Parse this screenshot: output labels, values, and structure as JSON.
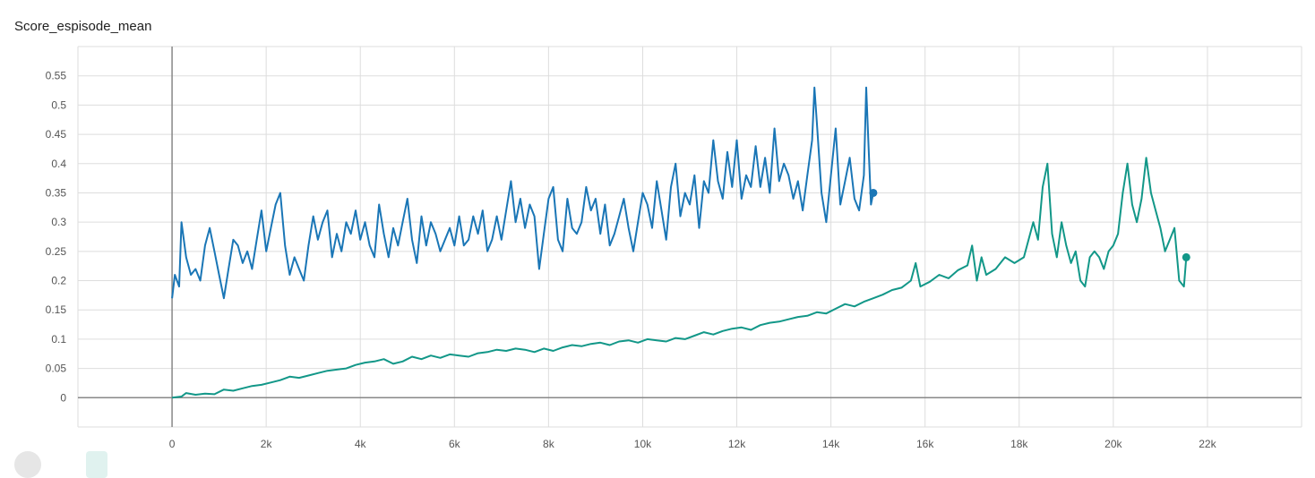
{
  "title": "Score_espisode_mean",
  "chart_data": {
    "type": "line",
    "title": "Score_espisode_mean",
    "xlabel": "",
    "ylabel": "",
    "xlim": [
      -2000,
      24000
    ],
    "ylim": [
      -0.05,
      0.6
    ],
    "grid": true,
    "x_ticks": [
      0,
      2000,
      4000,
      6000,
      8000,
      10000,
      12000,
      14000,
      16000,
      18000,
      20000,
      22000
    ],
    "x_tick_labels": [
      "0",
      "2k",
      "4k",
      "6k",
      "8k",
      "10k",
      "12k",
      "14k",
      "16k",
      "18k",
      "20k",
      "22k"
    ],
    "y_ticks": [
      0,
      0.05,
      0.1,
      0.15,
      0.2,
      0.25,
      0.3,
      0.35,
      0.4,
      0.45,
      0.5,
      0.55
    ],
    "y_tick_labels": [
      "0",
      "0.05",
      "0.1",
      "0.15",
      "0.2",
      "0.25",
      "0.3",
      "0.35",
      "0.4",
      "0.45",
      "0.5",
      "0.55"
    ],
    "series": [
      {
        "color": "#1a76b6",
        "end_marker": true,
        "points": [
          [
            0,
            0.17
          ],
          [
            60,
            0.21
          ],
          [
            150,
            0.19
          ],
          [
            200,
            0.3
          ],
          [
            300,
            0.24
          ],
          [
            400,
            0.21
          ],
          [
            500,
            0.22
          ],
          [
            600,
            0.2
          ],
          [
            700,
            0.26
          ],
          [
            800,
            0.29
          ],
          [
            900,
            0.25
          ],
          [
            1000,
            0.21
          ],
          [
            1100,
            0.17
          ],
          [
            1200,
            0.22
          ],
          [
            1300,
            0.27
          ],
          [
            1400,
            0.26
          ],
          [
            1500,
            0.23
          ],
          [
            1600,
            0.25
          ],
          [
            1700,
            0.22
          ],
          [
            1800,
            0.27
          ],
          [
            1900,
            0.32
          ],
          [
            2000,
            0.25
          ],
          [
            2100,
            0.29
          ],
          [
            2200,
            0.33
          ],
          [
            2300,
            0.35
          ],
          [
            2400,
            0.26
          ],
          [
            2500,
            0.21
          ],
          [
            2600,
            0.24
          ],
          [
            2700,
            0.22
          ],
          [
            2800,
            0.2
          ],
          [
            2900,
            0.26
          ],
          [
            3000,
            0.31
          ],
          [
            3100,
            0.27
          ],
          [
            3200,
            0.3
          ],
          [
            3300,
            0.32
          ],
          [
            3400,
            0.24
          ],
          [
            3500,
            0.28
          ],
          [
            3600,
            0.25
          ],
          [
            3700,
            0.3
          ],
          [
            3800,
            0.28
          ],
          [
            3900,
            0.32
          ],
          [
            4000,
            0.27
          ],
          [
            4100,
            0.3
          ],
          [
            4200,
            0.26
          ],
          [
            4300,
            0.24
          ],
          [
            4400,
            0.33
          ],
          [
            4500,
            0.28
          ],
          [
            4600,
            0.24
          ],
          [
            4700,
            0.29
          ],
          [
            4800,
            0.26
          ],
          [
            4900,
            0.3
          ],
          [
            5000,
            0.34
          ],
          [
            5100,
            0.27
          ],
          [
            5200,
            0.23
          ],
          [
            5300,
            0.31
          ],
          [
            5400,
            0.26
          ],
          [
            5500,
            0.3
          ],
          [
            5600,
            0.28
          ],
          [
            5700,
            0.25
          ],
          [
            5800,
            0.27
          ],
          [
            5900,
            0.29
          ],
          [
            6000,
            0.26
          ],
          [
            6100,
            0.31
          ],
          [
            6200,
            0.26
          ],
          [
            6300,
            0.27
          ],
          [
            6400,
            0.31
          ],
          [
            6500,
            0.28
          ],
          [
            6600,
            0.32
          ],
          [
            6700,
            0.25
          ],
          [
            6800,
            0.27
          ],
          [
            6900,
            0.31
          ],
          [
            7000,
            0.27
          ],
          [
            7100,
            0.32
          ],
          [
            7200,
            0.37
          ],
          [
            7300,
            0.3
          ],
          [
            7400,
            0.34
          ],
          [
            7500,
            0.29
          ],
          [
            7600,
            0.33
          ],
          [
            7700,
            0.31
          ],
          [
            7800,
            0.22
          ],
          [
            7900,
            0.28
          ],
          [
            8000,
            0.34
          ],
          [
            8100,
            0.36
          ],
          [
            8200,
            0.27
          ],
          [
            8300,
            0.25
          ],
          [
            8400,
            0.34
          ],
          [
            8500,
            0.29
          ],
          [
            8600,
            0.28
          ],
          [
            8700,
            0.3
          ],
          [
            8800,
            0.36
          ],
          [
            8900,
            0.32
          ],
          [
            9000,
            0.34
          ],
          [
            9100,
            0.28
          ],
          [
            9200,
            0.33
          ],
          [
            9300,
            0.26
          ],
          [
            9400,
            0.28
          ],
          [
            9500,
            0.31
          ],
          [
            9600,
            0.34
          ],
          [
            9700,
            0.29
          ],
          [
            9800,
            0.25
          ],
          [
            9900,
            0.3
          ],
          [
            10000,
            0.35
          ],
          [
            10100,
            0.33
          ],
          [
            10200,
            0.29
          ],
          [
            10300,
            0.37
          ],
          [
            10400,
            0.32
          ],
          [
            10500,
            0.27
          ],
          [
            10600,
            0.36
          ],
          [
            10700,
            0.4
          ],
          [
            10800,
            0.31
          ],
          [
            10900,
            0.35
          ],
          [
            11000,
            0.33
          ],
          [
            11100,
            0.38
          ],
          [
            11200,
            0.29
          ],
          [
            11300,
            0.37
          ],
          [
            11400,
            0.35
          ],
          [
            11500,
            0.44
          ],
          [
            11600,
            0.37
          ],
          [
            11700,
            0.34
          ],
          [
            11800,
            0.42
          ],
          [
            11900,
            0.36
          ],
          [
            12000,
            0.44
          ],
          [
            12100,
            0.34
          ],
          [
            12200,
            0.38
          ],
          [
            12300,
            0.36
          ],
          [
            12400,
            0.43
          ],
          [
            12500,
            0.36
          ],
          [
            12600,
            0.41
          ],
          [
            12700,
            0.35
          ],
          [
            12800,
            0.46
          ],
          [
            12900,
            0.37
          ],
          [
            13000,
            0.4
          ],
          [
            13100,
            0.38
          ],
          [
            13200,
            0.34
          ],
          [
            13300,
            0.37
          ],
          [
            13400,
            0.32
          ],
          [
            13500,
            0.38
          ],
          [
            13600,
            0.44
          ],
          [
            13650,
            0.53
          ],
          [
            13700,
            0.47
          ],
          [
            13800,
            0.35
          ],
          [
            13900,
            0.3
          ],
          [
            14000,
            0.38
          ],
          [
            14100,
            0.46
          ],
          [
            14200,
            0.33
          ],
          [
            14300,
            0.37
          ],
          [
            14400,
            0.41
          ],
          [
            14500,
            0.34
          ],
          [
            14600,
            0.32
          ],
          [
            14700,
            0.38
          ],
          [
            14750,
            0.53
          ],
          [
            14800,
            0.43
          ],
          [
            14850,
            0.33
          ],
          [
            14900,
            0.35
          ]
        ]
      },
      {
        "color": "#129788",
        "end_marker": true,
        "points": [
          [
            0,
            0.0
          ],
          [
            200,
            0.002
          ],
          [
            300,
            0.008
          ],
          [
            500,
            0.005
          ],
          [
            700,
            0.007
          ],
          [
            900,
            0.006
          ],
          [
            1100,
            0.014
          ],
          [
            1300,
            0.012
          ],
          [
            1500,
            0.016
          ],
          [
            1700,
            0.02
          ],
          [
            1900,
            0.022
          ],
          [
            2100,
            0.026
          ],
          [
            2300,
            0.03
          ],
          [
            2500,
            0.036
          ],
          [
            2700,
            0.034
          ],
          [
            2900,
            0.038
          ],
          [
            3100,
            0.042
          ],
          [
            3300,
            0.046
          ],
          [
            3500,
            0.048
          ],
          [
            3700,
            0.05
          ],
          [
            3900,
            0.056
          ],
          [
            4100,
            0.06
          ],
          [
            4300,
            0.062
          ],
          [
            4500,
            0.066
          ],
          [
            4700,
            0.058
          ],
          [
            4900,
            0.062
          ],
          [
            5100,
            0.07
          ],
          [
            5300,
            0.066
          ],
          [
            5500,
            0.072
          ],
          [
            5700,
            0.068
          ],
          [
            5900,
            0.074
          ],
          [
            6100,
            0.072
          ],
          [
            6300,
            0.07
          ],
          [
            6500,
            0.076
          ],
          [
            6700,
            0.078
          ],
          [
            6900,
            0.082
          ],
          [
            7100,
            0.08
          ],
          [
            7300,
            0.084
          ],
          [
            7500,
            0.082
          ],
          [
            7700,
            0.078
          ],
          [
            7900,
            0.084
          ],
          [
            8100,
            0.08
          ],
          [
            8300,
            0.086
          ],
          [
            8500,
            0.09
          ],
          [
            8700,
            0.088
          ],
          [
            8900,
            0.092
          ],
          [
            9100,
            0.094
          ],
          [
            9300,
            0.09
          ],
          [
            9500,
            0.096
          ],
          [
            9700,
            0.098
          ],
          [
            9900,
            0.094
          ],
          [
            10100,
            0.1
          ],
          [
            10300,
            0.098
          ],
          [
            10500,
            0.096
          ],
          [
            10700,
            0.102
          ],
          [
            10900,
            0.1
          ],
          [
            11100,
            0.106
          ],
          [
            11300,
            0.112
          ],
          [
            11500,
            0.108
          ],
          [
            11700,
            0.114
          ],
          [
            11900,
            0.118
          ],
          [
            12100,
            0.12
          ],
          [
            12300,
            0.116
          ],
          [
            12500,
            0.124
          ],
          [
            12700,
            0.128
          ],
          [
            12900,
            0.13
          ],
          [
            13100,
            0.134
          ],
          [
            13300,
            0.138
          ],
          [
            13500,
            0.14
          ],
          [
            13700,
            0.146
          ],
          [
            13900,
            0.144
          ],
          [
            14100,
            0.152
          ],
          [
            14300,
            0.16
          ],
          [
            14500,
            0.156
          ],
          [
            14700,
            0.164
          ],
          [
            14900,
            0.17
          ],
          [
            15100,
            0.176
          ],
          [
            15300,
            0.184
          ],
          [
            15500,
            0.188
          ],
          [
            15700,
            0.2
          ],
          [
            15800,
            0.23
          ],
          [
            15900,
            0.19
          ],
          [
            16100,
            0.198
          ],
          [
            16300,
            0.21
          ],
          [
            16500,
            0.204
          ],
          [
            16700,
            0.218
          ],
          [
            16900,
            0.226
          ],
          [
            17000,
            0.26
          ],
          [
            17100,
            0.2
          ],
          [
            17200,
            0.24
          ],
          [
            17300,
            0.21
          ],
          [
            17500,
            0.22
          ],
          [
            17700,
            0.24
          ],
          [
            17900,
            0.23
          ],
          [
            18100,
            0.24
          ],
          [
            18300,
            0.3
          ],
          [
            18400,
            0.27
          ],
          [
            18500,
            0.36
          ],
          [
            18600,
            0.4
          ],
          [
            18700,
            0.28
          ],
          [
            18800,
            0.24
          ],
          [
            18900,
            0.3
          ],
          [
            19000,
            0.26
          ],
          [
            19100,
            0.23
          ],
          [
            19200,
            0.25
          ],
          [
            19300,
            0.2
          ],
          [
            19400,
            0.19
          ],
          [
            19500,
            0.24
          ],
          [
            19600,
            0.25
          ],
          [
            19700,
            0.24
          ],
          [
            19800,
            0.22
          ],
          [
            19900,
            0.25
          ],
          [
            20000,
            0.26
          ],
          [
            20100,
            0.28
          ],
          [
            20200,
            0.35
          ],
          [
            20300,
            0.4
          ],
          [
            20400,
            0.33
          ],
          [
            20500,
            0.3
          ],
          [
            20600,
            0.34
          ],
          [
            20700,
            0.41
          ],
          [
            20800,
            0.35
          ],
          [
            20900,
            0.32
          ],
          [
            21000,
            0.29
          ],
          [
            21100,
            0.25
          ],
          [
            21200,
            0.27
          ],
          [
            21300,
            0.29
          ],
          [
            21400,
            0.2
          ],
          [
            21500,
            0.19
          ],
          [
            21550,
            0.24
          ]
        ]
      }
    ]
  }
}
